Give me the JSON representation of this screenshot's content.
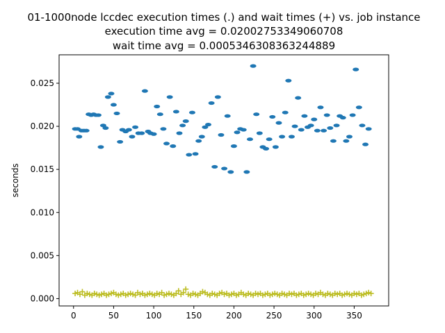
{
  "chart_data": {
    "type": "scatter",
    "title_lines": [
      "01-1000node lccdec execution times (.) and wait times (+) vs. job instance",
      "execution time avg = 0.02002753349060708",
      "wait time avg = 0.0005346308363244889"
    ],
    "xlabel": "",
    "ylabel": "seconds",
    "xlim": [
      -18,
      393
    ],
    "ylim": [
      -0.00085,
      0.0283
    ],
    "x_ticks": [
      0,
      50,
      100,
      150,
      200,
      250,
      300,
      350
    ],
    "y_ticks": [
      0.0,
      0.005,
      0.01,
      0.015,
      0.02,
      0.025
    ],
    "y_tick_labels": [
      "0.000",
      "0.005",
      "0.010",
      "0.015",
      "0.020",
      "0.025"
    ],
    "grid": false,
    "colors": {
      "execution": "#1f77b4",
      "wait": "#bcbd22"
    },
    "series": [
      {
        "marker": "dot",
        "points": [
          [
            2,
            0.0197
          ],
          [
            5,
            0.0197
          ],
          [
            7,
            0.0188
          ],
          [
            10,
            0.0195
          ],
          [
            13,
            0.0195
          ],
          [
            16,
            0.0195
          ],
          [
            19,
            0.0214
          ],
          [
            22,
            0.0213
          ],
          [
            25,
            0.0214
          ],
          [
            28,
            0.0213
          ],
          [
            31,
            0.0213
          ],
          [
            34,
            0.0176
          ],
          [
            37,
            0.0201
          ],
          [
            40,
            0.0198
          ],
          [
            43,
            0.0234
          ],
          [
            47,
            0.0238
          ],
          [
            50,
            0.0225
          ],
          [
            54,
            0.0215
          ],
          [
            58,
            0.0182
          ],
          [
            61,
            0.0196
          ],
          [
            65,
            0.0194
          ],
          [
            69,
            0.0196
          ],
          [
            73,
            0.0188
          ],
          [
            77,
            0.0199
          ],
          [
            81,
            0.0192
          ],
          [
            85,
            0.0192
          ],
          [
            89,
            0.0241
          ],
          [
            93,
            0.0194
          ],
          [
            96,
            0.0192
          ],
          [
            100,
            0.0191
          ],
          [
            104,
            0.0223
          ],
          [
            108,
            0.0214
          ],
          [
            112,
            0.0197
          ],
          [
            116,
            0.018
          ],
          [
            120,
            0.0234
          ],
          [
            124,
            0.0177
          ],
          [
            128,
            0.0217
          ],
          [
            132,
            0.0192
          ],
          [
            136,
            0.0201
          ],
          [
            140,
            0.0206
          ],
          [
            144,
            0.0167
          ],
          [
            148,
            0.0216
          ],
          [
            152,
            0.0168
          ],
          [
            156,
            0.0183
          ],
          [
            160,
            0.0188
          ],
          [
            164,
            0.0199
          ],
          [
            168,
            0.0202
          ],
          [
            172,
            0.0227
          ],
          [
            176,
            0.0153
          ],
          [
            180,
            0.0234
          ],
          [
            184,
            0.019
          ],
          [
            188,
            0.0151
          ],
          [
            192,
            0.0212
          ],
          [
            196,
            0.0147
          ],
          [
            200,
            0.0177
          ],
          [
            204,
            0.0193
          ],
          [
            208,
            0.0197
          ],
          [
            212,
            0.0196
          ],
          [
            216,
            0.0147
          ],
          [
            220,
            0.0185
          ],
          [
            224,
            0.027
          ],
          [
            228,
            0.0214
          ],
          [
            232,
            0.0192
          ],
          [
            236,
            0.0176
          ],
          [
            240,
            0.0174
          ],
          [
            244,
            0.0185
          ],
          [
            248,
            0.0211
          ],
          [
            252,
            0.0176
          ],
          [
            256,
            0.0204
          ],
          [
            260,
            0.0188
          ],
          [
            264,
            0.0216
          ],
          [
            268,
            0.0253
          ],
          [
            272,
            0.0188
          ],
          [
            276,
            0.02
          ],
          [
            280,
            0.0233
          ],
          [
            284,
            0.0196
          ],
          [
            288,
            0.0212
          ],
          [
            292,
            0.0199
          ],
          [
            296,
            0.0201
          ],
          [
            300,
            0.0208
          ],
          [
            304,
            0.0195
          ],
          [
            308,
            0.0222
          ],
          [
            312,
            0.0195
          ],
          [
            316,
            0.0213
          ],
          [
            320,
            0.0198
          ],
          [
            324,
            0.0183
          ],
          [
            328,
            0.0201
          ],
          [
            332,
            0.0212
          ],
          [
            336,
            0.021
          ],
          [
            340,
            0.0183
          ],
          [
            344,
            0.0188
          ],
          [
            348,
            0.0213
          ],
          [
            352,
            0.0266
          ],
          [
            356,
            0.0222
          ],
          [
            360,
            0.0201
          ],
          [
            364,
            0.0179
          ],
          [
            368,
            0.0197
          ]
        ]
      },
      {
        "marker": "plus",
        "points": [
          [
            2,
            0.0006
          ],
          [
            5,
            0.0007
          ],
          [
            8,
            0.0005
          ],
          [
            11,
            0.0008
          ],
          [
            14,
            0.0004
          ],
          [
            17,
            0.0006
          ],
          [
            20,
            0.0005
          ],
          [
            23,
            0.0004
          ],
          [
            26,
            0.0006
          ],
          [
            29,
            0.0005
          ],
          [
            32,
            0.0004
          ],
          [
            35,
            0.0005
          ],
          [
            38,
            0.0006
          ],
          [
            41,
            0.0004
          ],
          [
            44,
            0.0005
          ],
          [
            47,
            0.0006
          ],
          [
            50,
            0.0007
          ],
          [
            53,
            0.0005
          ],
          [
            56,
            0.0004
          ],
          [
            59,
            0.0005
          ],
          [
            62,
            0.0006
          ],
          [
            65,
            0.0004
          ],
          [
            68,
            0.0005
          ],
          [
            71,
            0.0006
          ],
          [
            74,
            0.0005
          ],
          [
            77,
            0.0004
          ],
          [
            80,
            0.0007
          ],
          [
            83,
            0.0005
          ],
          [
            86,
            0.0006
          ],
          [
            89,
            0.0004
          ],
          [
            92,
            0.0005
          ],
          [
            95,
            0.0006
          ],
          [
            98,
            0.0005
          ],
          [
            101,
            0.0004
          ],
          [
            104,
            0.0006
          ],
          [
            107,
            0.0005
          ],
          [
            110,
            0.0007
          ],
          [
            113,
            0.0004
          ],
          [
            116,
            0.0005
          ],
          [
            119,
            0.0006
          ],
          [
            122,
            0.0005
          ],
          [
            125,
            0.0004
          ],
          [
            128,
            0.0006
          ],
          [
            131,
            0.0009
          ],
          [
            134,
            0.0005
          ],
          [
            137,
            0.0007
          ],
          [
            140,
            0.0011
          ],
          [
            143,
            0.0005
          ],
          [
            146,
            0.0004
          ],
          [
            149,
            0.0006
          ],
          [
            152,
            0.0005
          ],
          [
            155,
            0.0004
          ],
          [
            158,
            0.0006
          ],
          [
            161,
            0.0008
          ],
          [
            164,
            0.0007
          ],
          [
            167,
            0.0005
          ],
          [
            170,
            0.0004
          ],
          [
            173,
            0.0006
          ],
          [
            176,
            0.0005
          ],
          [
            179,
            0.0004
          ],
          [
            182,
            0.0006
          ],
          [
            185,
            0.0007
          ],
          [
            188,
            0.0005
          ],
          [
            191,
            0.0006
          ],
          [
            194,
            0.0004
          ],
          [
            197,
            0.0005
          ],
          [
            200,
            0.0006
          ],
          [
            203,
            0.0004
          ],
          [
            206,
            0.0005
          ],
          [
            209,
            0.0007
          ],
          [
            212,
            0.0005
          ],
          [
            215,
            0.0004
          ],
          [
            218,
            0.0006
          ],
          [
            221,
            0.0005
          ],
          [
            224,
            0.0004
          ],
          [
            227,
            0.0006
          ],
          [
            230,
            0.0005
          ],
          [
            233,
            0.0006
          ],
          [
            236,
            0.0004
          ],
          [
            239,
            0.0005
          ],
          [
            242,
            0.0006
          ],
          [
            245,
            0.0004
          ],
          [
            248,
            0.0005
          ],
          [
            251,
            0.0006
          ],
          [
            254,
            0.0005
          ],
          [
            257,
            0.0004
          ],
          [
            260,
            0.0006
          ],
          [
            263,
            0.0005
          ],
          [
            266,
            0.0004
          ],
          [
            269,
            0.0006
          ],
          [
            272,
            0.0005
          ],
          [
            275,
            0.0006
          ],
          [
            278,
            0.0004
          ],
          [
            281,
            0.0005
          ],
          [
            284,
            0.0006
          ],
          [
            287,
            0.0004
          ],
          [
            290,
            0.0005
          ],
          [
            293,
            0.0006
          ],
          [
            296,
            0.0005
          ],
          [
            299,
            0.0004
          ],
          [
            302,
            0.0006
          ],
          [
            305,
            0.0005
          ],
          [
            308,
            0.0007
          ],
          [
            311,
            0.0005
          ],
          [
            314,
            0.0004
          ],
          [
            317,
            0.0006
          ],
          [
            320,
            0.0005
          ],
          [
            323,
            0.0004
          ],
          [
            326,
            0.0006
          ],
          [
            329,
            0.0005
          ],
          [
            332,
            0.0006
          ],
          [
            335,
            0.0004
          ],
          [
            338,
            0.0005
          ],
          [
            341,
            0.0006
          ],
          [
            344,
            0.0005
          ],
          [
            347,
            0.0004
          ],
          [
            350,
            0.0006
          ],
          [
            353,
            0.0005
          ],
          [
            356,
            0.0006
          ],
          [
            359,
            0.0004
          ],
          [
            362,
            0.0005
          ],
          [
            365,
            0.0006
          ],
          [
            368,
            0.0007
          ],
          [
            371,
            0.0006
          ]
        ]
      }
    ]
  }
}
